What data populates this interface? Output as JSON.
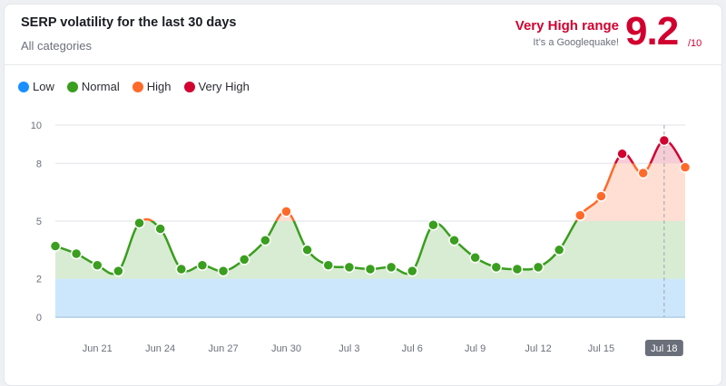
{
  "header": {
    "title": "SERP volatility for the last 30 days",
    "subtitle": "All categories",
    "range_label": "Very High range",
    "range_subtext": "It’s a Googlequake!",
    "score": "9.2",
    "score_max": "/10"
  },
  "colors": {
    "low": "#1a8fff",
    "normal": "#3a9e1e",
    "high": "#ff6a2b",
    "very_high": "#d1002f"
  },
  "chart_data": {
    "type": "line",
    "legend": [
      {
        "name": "Low",
        "color": "#1a8fff",
        "range": [
          0,
          2
        ]
      },
      {
        "name": "Normal",
        "color": "#3a9e1e",
        "range": [
          2,
          5
        ]
      },
      {
        "name": "High",
        "color": "#ff6a2b",
        "range": [
          5,
          8
        ]
      },
      {
        "name": "Very High",
        "color": "#d1002f",
        "range": [
          8,
          10
        ]
      }
    ],
    "legend_position": "top-left",
    "ylim": [
      0,
      10
    ],
    "yticks": [
      0,
      2,
      5,
      8,
      10
    ],
    "x": [
      "Jun 19",
      "Jun 20",
      "Jun 21",
      "Jun 22",
      "Jun 23",
      "Jun 24",
      "Jun 25",
      "Jun 26",
      "Jun 27",
      "Jun 28",
      "Jun 29",
      "Jun 30",
      "Jul 1",
      "Jul 2",
      "Jul 3",
      "Jul 4",
      "Jul 5",
      "Jul 6",
      "Jul 7",
      "Jul 8",
      "Jul 9",
      "Jul 10",
      "Jul 11",
      "Jul 12",
      "Jul 13",
      "Jul 14",
      "Jul 15",
      "Jul 16",
      "Jul 17",
      "Jul 18",
      "Jul 19"
    ],
    "values": [
      3.7,
      3.3,
      2.7,
      2.4,
      4.9,
      4.6,
      2.5,
      2.7,
      2.4,
      3.0,
      4.0,
      5.5,
      3.5,
      2.7,
      2.6,
      2.5,
      2.6,
      2.4,
      4.8,
      4.0,
      3.1,
      2.6,
      2.5,
      2.6,
      3.5,
      5.3,
      6.3,
      8.5,
      7.5,
      9.2,
      7.8
    ],
    "xtick_labels": [
      "Jun 21",
      "Jun 24",
      "Jun 27",
      "Jun 30",
      "Jul 3",
      "Jul 6",
      "Jul 9",
      "Jul 12",
      "Jul 15",
      "Jul 18"
    ],
    "highlighted": "Jul 18",
    "grid": true
  }
}
